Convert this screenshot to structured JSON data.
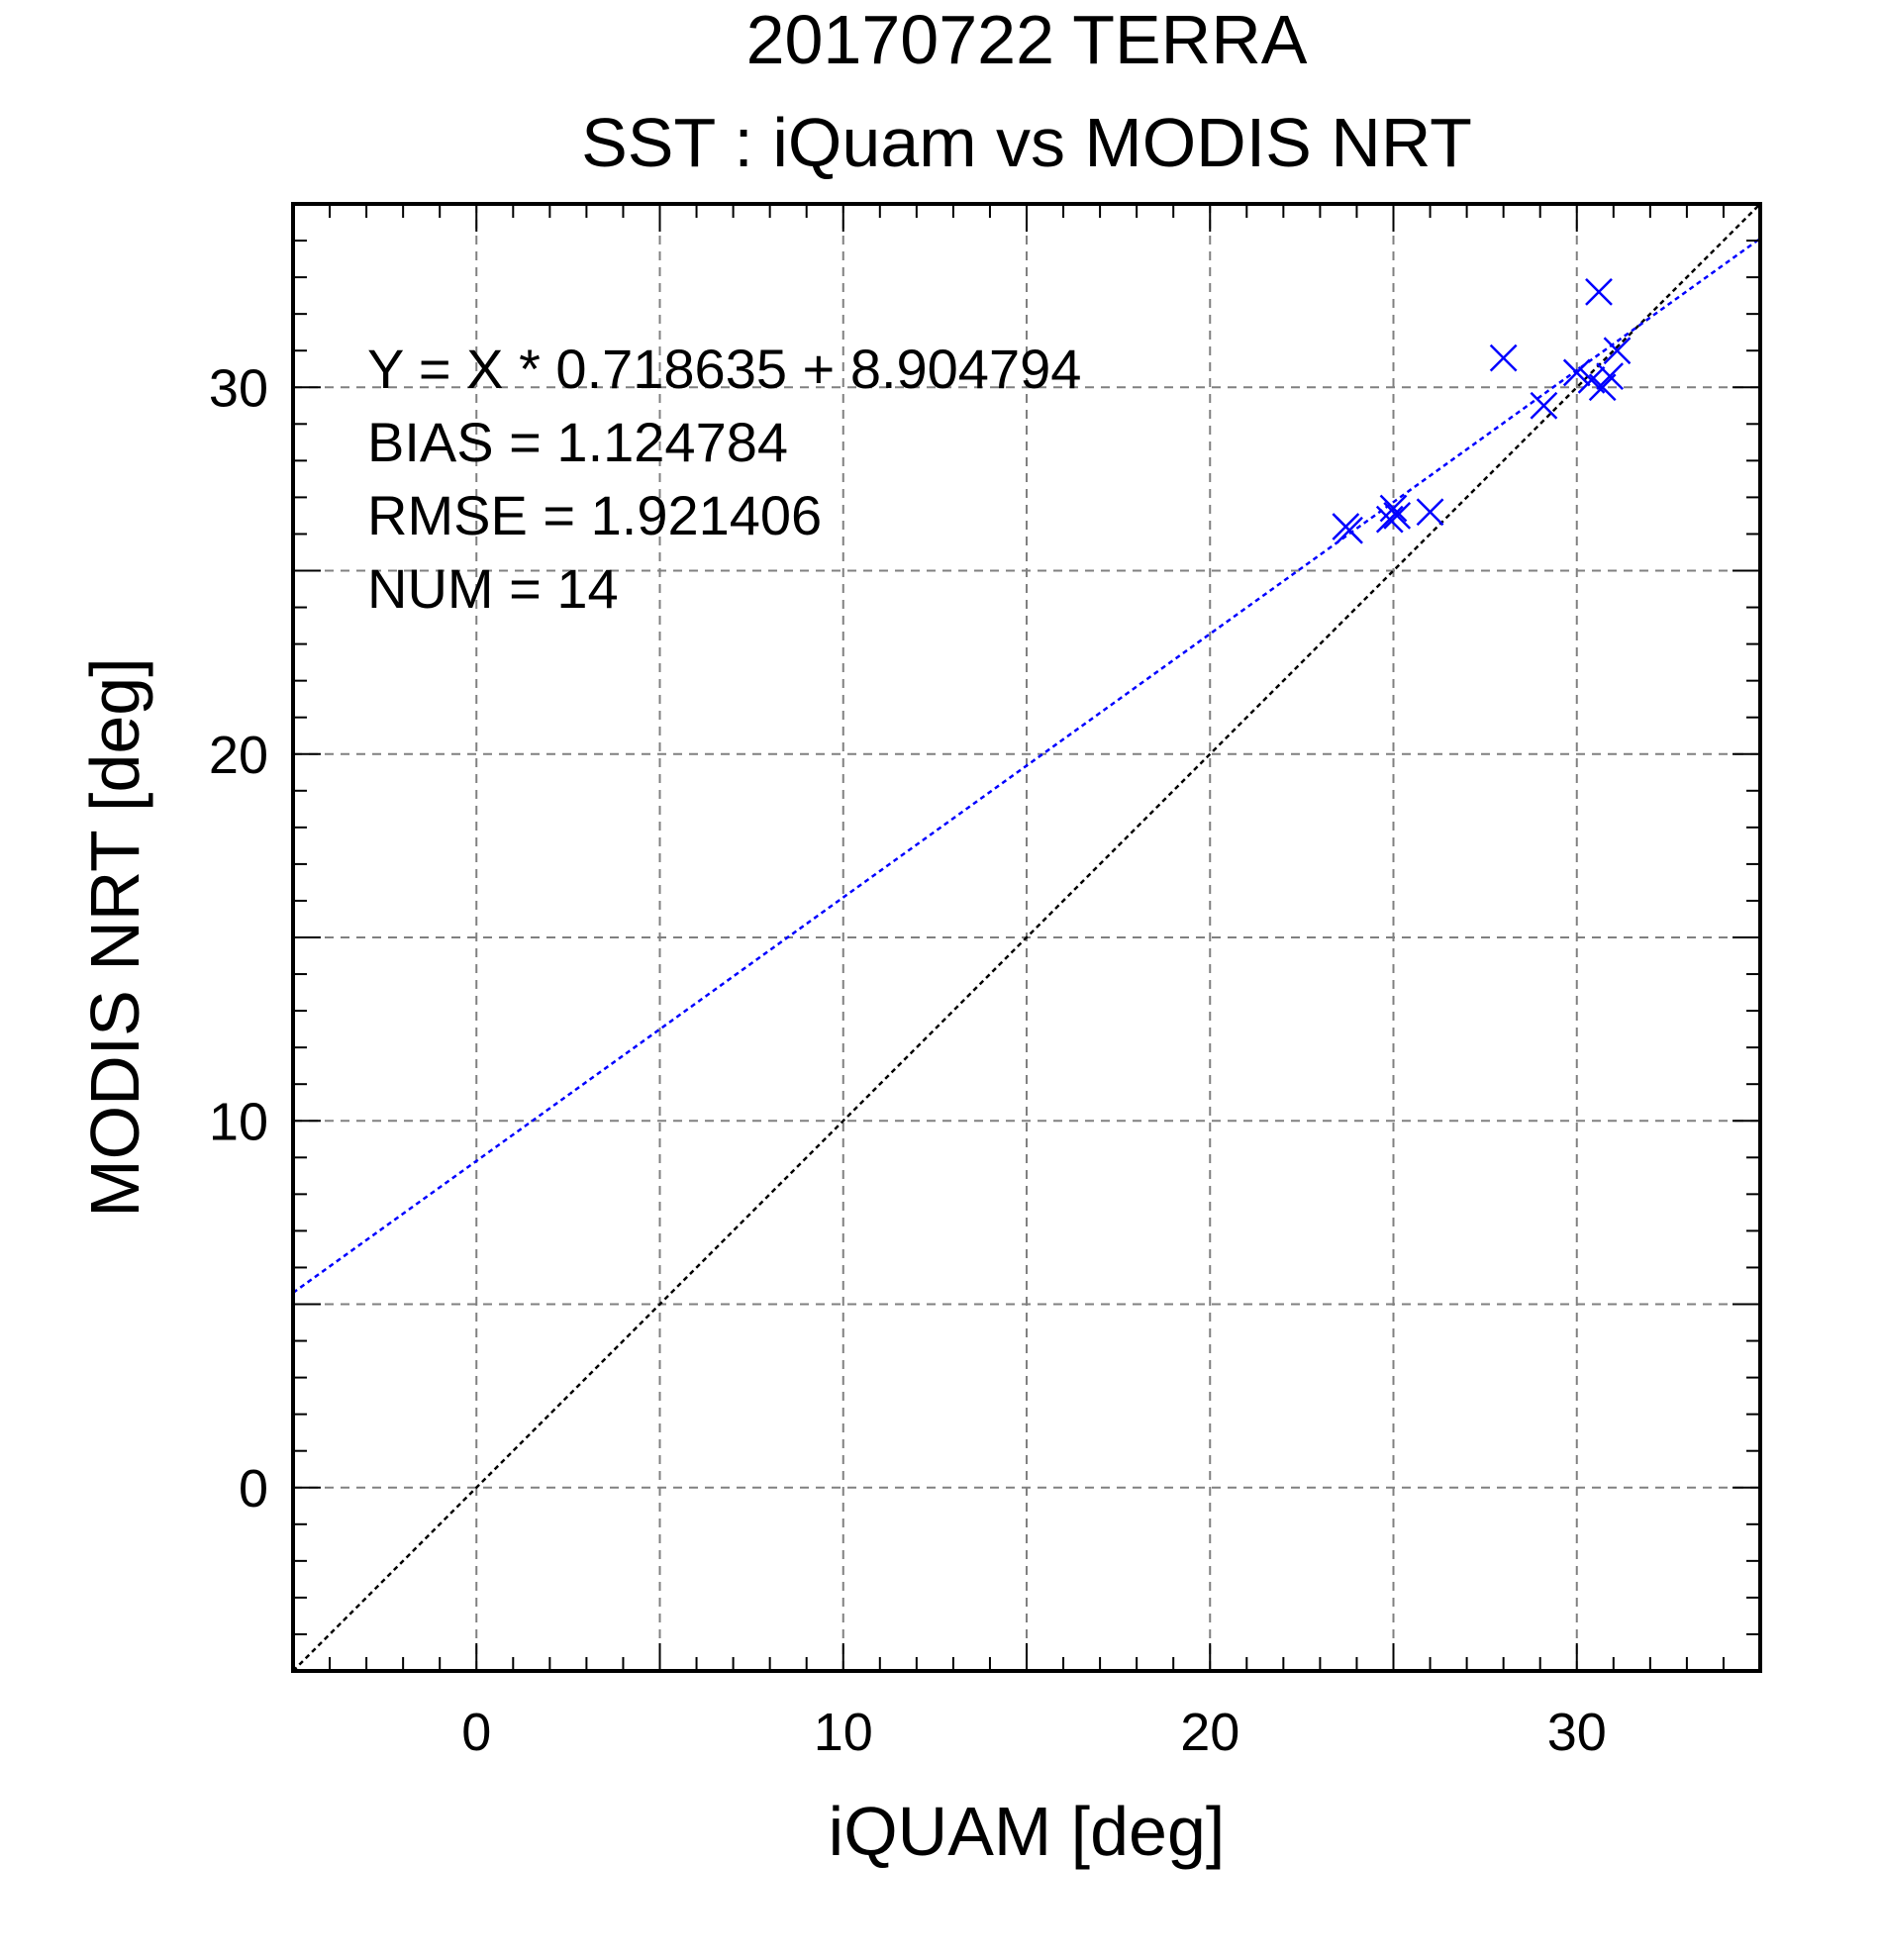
{
  "chart_data": {
    "type": "scatter",
    "title": "20170722 TERRA",
    "subtitle": "SST : iQuam vs MODIS NRT",
    "xlabel": "iQUAM [deg]",
    "ylabel": "MODIS NRT [deg]",
    "xlim": [
      -5,
      35
    ],
    "ylim": [
      -5,
      35
    ],
    "xticks": [
      0,
      10,
      20,
      30
    ],
    "yticks": [
      0,
      10,
      20,
      30
    ],
    "grid": true,
    "grid_step": 5,
    "minor_tick_step": 1,
    "annotations": [
      "Y = X * 0.718635 + 8.904794",
      "BIAS = 1.124784",
      "RMSE = 1.921406",
      "NUM = 14"
    ],
    "series": [
      {
        "marker": "x",
        "color": "#0000ff",
        "points": [
          [
            23.7,
            26.2
          ],
          [
            23.8,
            26.1
          ],
          [
            24.9,
            26.4
          ],
          [
            25.0,
            26.7
          ],
          [
            25.1,
            26.5
          ],
          [
            26.0,
            26.6
          ],
          [
            28.0,
            30.8
          ],
          [
            29.1,
            29.5
          ],
          [
            30.0,
            30.4
          ],
          [
            30.4,
            30.2
          ],
          [
            30.6,
            32.6
          ],
          [
            30.7,
            30.0
          ],
          [
            30.9,
            30.3
          ],
          [
            31.1,
            31.0
          ]
        ]
      }
    ],
    "fit_line": {
      "slope": 0.718635,
      "intercept": 8.904794,
      "color": "#0000ff",
      "style": "dotted"
    },
    "reference_line": {
      "slope": 1,
      "intercept": 0,
      "color": "#000000",
      "style": "dotted"
    }
  }
}
